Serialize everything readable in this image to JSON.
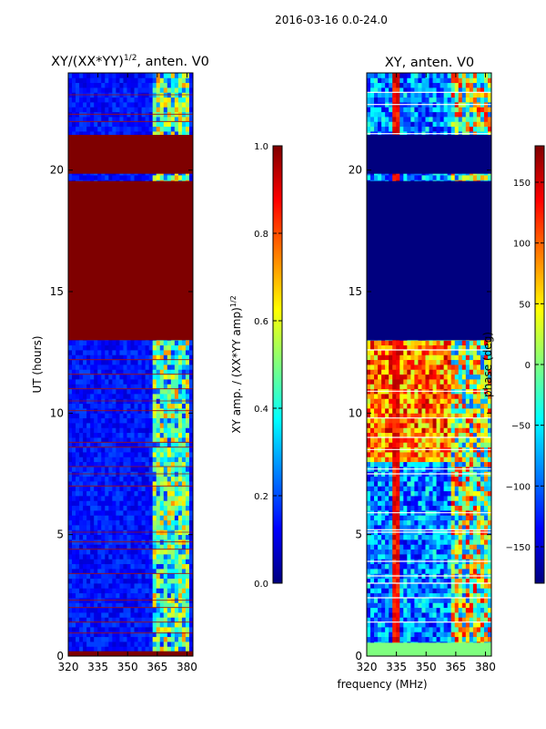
{
  "figure": {
    "suptitle": "2016-03-16 0.0-24.0",
    "xlabel_shared": "frequency (MHz)"
  },
  "colors": {
    "dark_red": "#7f0000",
    "dark_blue": "#00007f",
    "jet_stops": [
      "#00007f",
      "#0000ff",
      "#007fff",
      "#00ffff",
      "#7fff7f",
      "#ffff00",
      "#ff7f00",
      "#ff0000",
      "#7f0000"
    ]
  },
  "chart_data": [
    {
      "type": "heatmap",
      "title_prefix": "XY/(XX*YY)",
      "title_exp": "1/2",
      "title_suffix": ", anten. V0",
      "ylabel": "UT (hours)",
      "xlim": [
        320,
        383
      ],
      "ylim": [
        0,
        24
      ],
      "xticks": [
        320,
        335,
        350,
        365,
        380
      ],
      "yticks": [
        0,
        5,
        10,
        15,
        20
      ],
      "colorbar": {
        "label_prefix": "XY amp. / (XX*YY amp)",
        "label_exp": "1/2",
        "vmin": 0.0,
        "vmax": 1.0,
        "ticks": [
          0.0,
          0.2,
          0.4,
          0.6,
          0.8,
          1.0
        ],
        "tick_labels": [
          "0.0",
          "0.2",
          "0.4",
          "0.6",
          "0.8",
          "1.0"
        ]
      },
      "saturated_band_hours": [
        [
          13.0,
          19.55
        ],
        [
          19.85,
          21.45
        ]
      ],
      "rfi_band_mhz": [
        362,
        381
      ]
    },
    {
      "type": "heatmap",
      "title": "XY, anten. V0",
      "ylabel": "",
      "xlim": [
        320,
        383
      ],
      "ylim": [
        0,
        24
      ],
      "xticks": [
        320,
        335,
        350,
        365,
        380
      ],
      "yticks": [
        0,
        5,
        10,
        15,
        20
      ],
      "colorbar": {
        "label": "phase (deg)",
        "vmin": -180,
        "vmax": 180,
        "ticks": [
          -150,
          -100,
          -50,
          0,
          50,
          100,
          150
        ],
        "tick_labels": [
          "−150",
          "−100",
          "−50",
          "0",
          "50",
          "100",
          "150"
        ]
      },
      "flagged_band_hours": [
        [
          13.0,
          19.55
        ],
        [
          19.85,
          21.45
        ]
      ],
      "stripe_mhz": [
        333,
        337
      ]
    }
  ]
}
